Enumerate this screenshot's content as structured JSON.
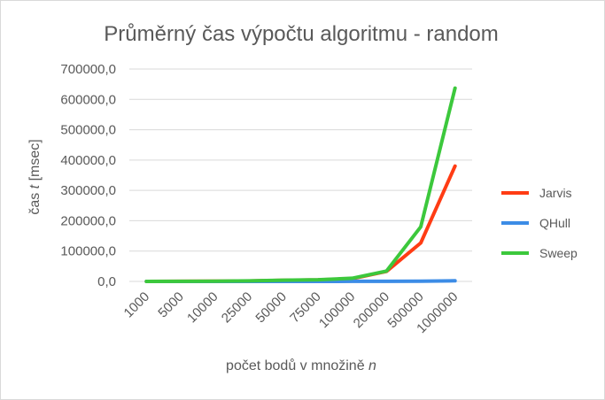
{
  "chart_data": {
    "type": "line",
    "title": "Průměrný čas výpočtu algoritmu - random",
    "xlabel_prefix": "počet bodů v množině ",
    "xlabel_var": "n",
    "ylabel_prefix": "čas ",
    "ylabel_var": "t",
    "ylabel_suffix": " [msec]",
    "categories": [
      "1000",
      "5000",
      "10000",
      "25000",
      "50000",
      "75000",
      "100000",
      "200000",
      "500000",
      "1000000"
    ],
    "ylim": [
      0,
      700000
    ],
    "yticks": [
      "0,0",
      "100000,0",
      "200000,0",
      "300000,0",
      "400000,0",
      "500000,0",
      "600000,0",
      "700000,0"
    ],
    "grid": true,
    "legend_position": "right",
    "series": [
      {
        "name": "Jarvis",
        "color": "#ff3c14",
        "values": [
          50,
          300,
          700,
          1500,
          3500,
          5000,
          9000,
          33000,
          127000,
          380000
        ]
      },
      {
        "name": "QHull",
        "color": "#3c8ce6",
        "values": [
          5,
          10,
          20,
          40,
          80,
          120,
          160,
          350,
          900,
          1900
        ]
      },
      {
        "name": "Sweep",
        "color": "#3cc83c",
        "values": [
          60,
          350,
          800,
          1700,
          4000,
          5500,
          10500,
          34000,
          180000,
          637000
        ]
      }
    ]
  }
}
